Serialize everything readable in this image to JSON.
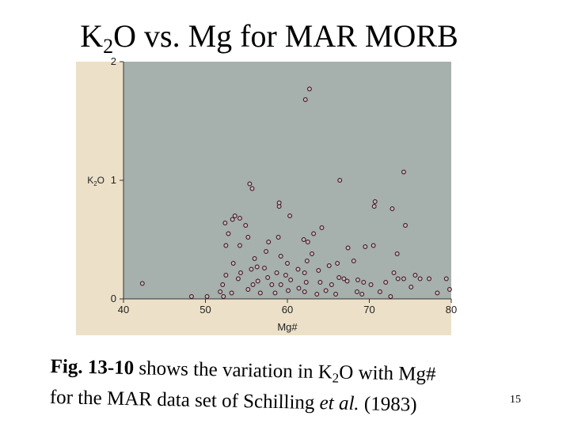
{
  "slide": {
    "title_prefix": "K",
    "title_sub": "2",
    "title_suffix": "O vs. Mg for MAR MORB",
    "page_number": "15"
  },
  "caption": {
    "fig_label": "Fig. 13-10",
    "text1": " shows the variation in K",
    "sub": "2",
    "text2": "O with Mg#",
    "text3": "for the MAR data set of Schilling ",
    "italic": "et al.",
    "text4": " (1983)"
  },
  "colors": {
    "frame": "#ece0c8",
    "plot_bg": "#a6b0ad",
    "marker_fill": "#cfb4b9",
    "marker_stroke": "#3a1e2a"
  },
  "chart_data": {
    "type": "scatter",
    "title": "K2O vs. Mg for MAR MORB",
    "xlabel": "Mg#",
    "ylabel": "K2O",
    "xlim": [
      40,
      80
    ],
    "ylim": [
      0,
      2
    ],
    "xticks": [
      "40",
      "50",
      "60",
      "70",
      "80"
    ],
    "yticks": [
      "0",
      "1",
      "2"
    ],
    "grid": false,
    "points": [
      [
        42.3,
        0.13
      ],
      [
        48.3,
        0.02
      ],
      [
        50.2,
        0.02
      ],
      [
        51.8,
        0.06
      ],
      [
        52.1,
        0.12
      ],
      [
        52.2,
        0.02
      ],
      [
        52.5,
        0.2
      ],
      [
        52.5,
        0.45
      ],
      [
        52.8,
        0.55
      ],
      [
        53.2,
        0.05
      ],
      [
        53.4,
        0.3
      ],
      [
        52.4,
        0.64
      ],
      [
        53.3,
        0.67
      ],
      [
        53.6,
        0.7
      ],
      [
        54.2,
        0.68
      ],
      [
        54.0,
        0.17
      ],
      [
        54.3,
        0.22
      ],
      [
        54.9,
        0.62
      ],
      [
        54.2,
        0.45
      ],
      [
        55.2,
        0.52
      ],
      [
        55.4,
        0.97
      ],
      [
        55.7,
        0.93
      ],
      [
        56.0,
        0.34
      ],
      [
        55.6,
        0.25
      ],
      [
        56.3,
        0.27
      ],
      [
        55.8,
        0.12
      ],
      [
        56.4,
        0.15
      ],
      [
        55.2,
        0.08
      ],
      [
        56.7,
        0.05
      ],
      [
        57.4,
        0.4
      ],
      [
        57.2,
        0.26
      ],
      [
        57.7,
        0.48
      ],
      [
        57.6,
        0.18
      ],
      [
        58.1,
        0.12
      ],
      [
        58.5,
        0.05
      ],
      [
        58.7,
        0.22
      ],
      [
        59.0,
        0.78
      ],
      [
        59.0,
        0.81
      ],
      [
        58.9,
        0.52
      ],
      [
        59.2,
        0.36
      ],
      [
        59.2,
        0.12
      ],
      [
        59.8,
        0.2
      ],
      [
        60.1,
        0.07
      ],
      [
        60.3,
        0.7
      ],
      [
        60.0,
        0.3
      ],
      [
        60.4,
        0.16
      ],
      [
        61.3,
        0.25
      ],
      [
        61.4,
        0.09
      ],
      [
        62.1,
        0.06
      ],
      [
        62.3,
        0.14
      ],
      [
        62.1,
        0.22
      ],
      [
        62.4,
        0.32
      ],
      [
        62.5,
        0.48
      ],
      [
        62.0,
        0.5
      ],
      [
        62.2,
        1.68
      ],
      [
        62.7,
        1.77
      ],
      [
        63.2,
        0.55
      ],
      [
        63.0,
        0.38
      ],
      [
        63.6,
        0.04
      ],
      [
        63.8,
        0.24
      ],
      [
        64.2,
        0.6
      ],
      [
        64.0,
        0.14
      ],
      [
        64.7,
        0.07
      ],
      [
        65.1,
        0.28
      ],
      [
        65.4,
        0.12
      ],
      [
        65.9,
        0.04
      ],
      [
        66.3,
        0.18
      ],
      [
        66.1,
        0.3
      ],
      [
        66.4,
        1.0
      ],
      [
        66.9,
        0.17
      ],
      [
        67.4,
        0.43
      ],
      [
        67.3,
        0.15
      ],
      [
        68.1,
        0.32
      ],
      [
        68.5,
        0.06
      ],
      [
        68.6,
        0.16
      ],
      [
        69.1,
        0.04
      ],
      [
        69.3,
        0.14
      ],
      [
        69.5,
        0.44
      ],
      [
        70.2,
        0.12
      ],
      [
        70.5,
        0.45
      ],
      [
        70.6,
        0.78
      ],
      [
        70.7,
        0.82
      ],
      [
        71.3,
        0.06
      ],
      [
        72.0,
        0.14
      ],
      [
        72.6,
        0.02
      ],
      [
        72.8,
        0.76
      ],
      [
        73.0,
        0.22
      ],
      [
        73.4,
        0.38
      ],
      [
        73.5,
        0.17
      ],
      [
        74.2,
        1.07
      ],
      [
        74.4,
        0.62
      ],
      [
        74.2,
        0.17
      ],
      [
        75.1,
        0.1
      ],
      [
        75.6,
        0.2
      ],
      [
        76.2,
        0.17
      ],
      [
        77.3,
        0.17
      ],
      [
        78.3,
        0.05
      ],
      [
        79.4,
        0.17
      ],
      [
        79.8,
        0.08
      ]
    ]
  }
}
